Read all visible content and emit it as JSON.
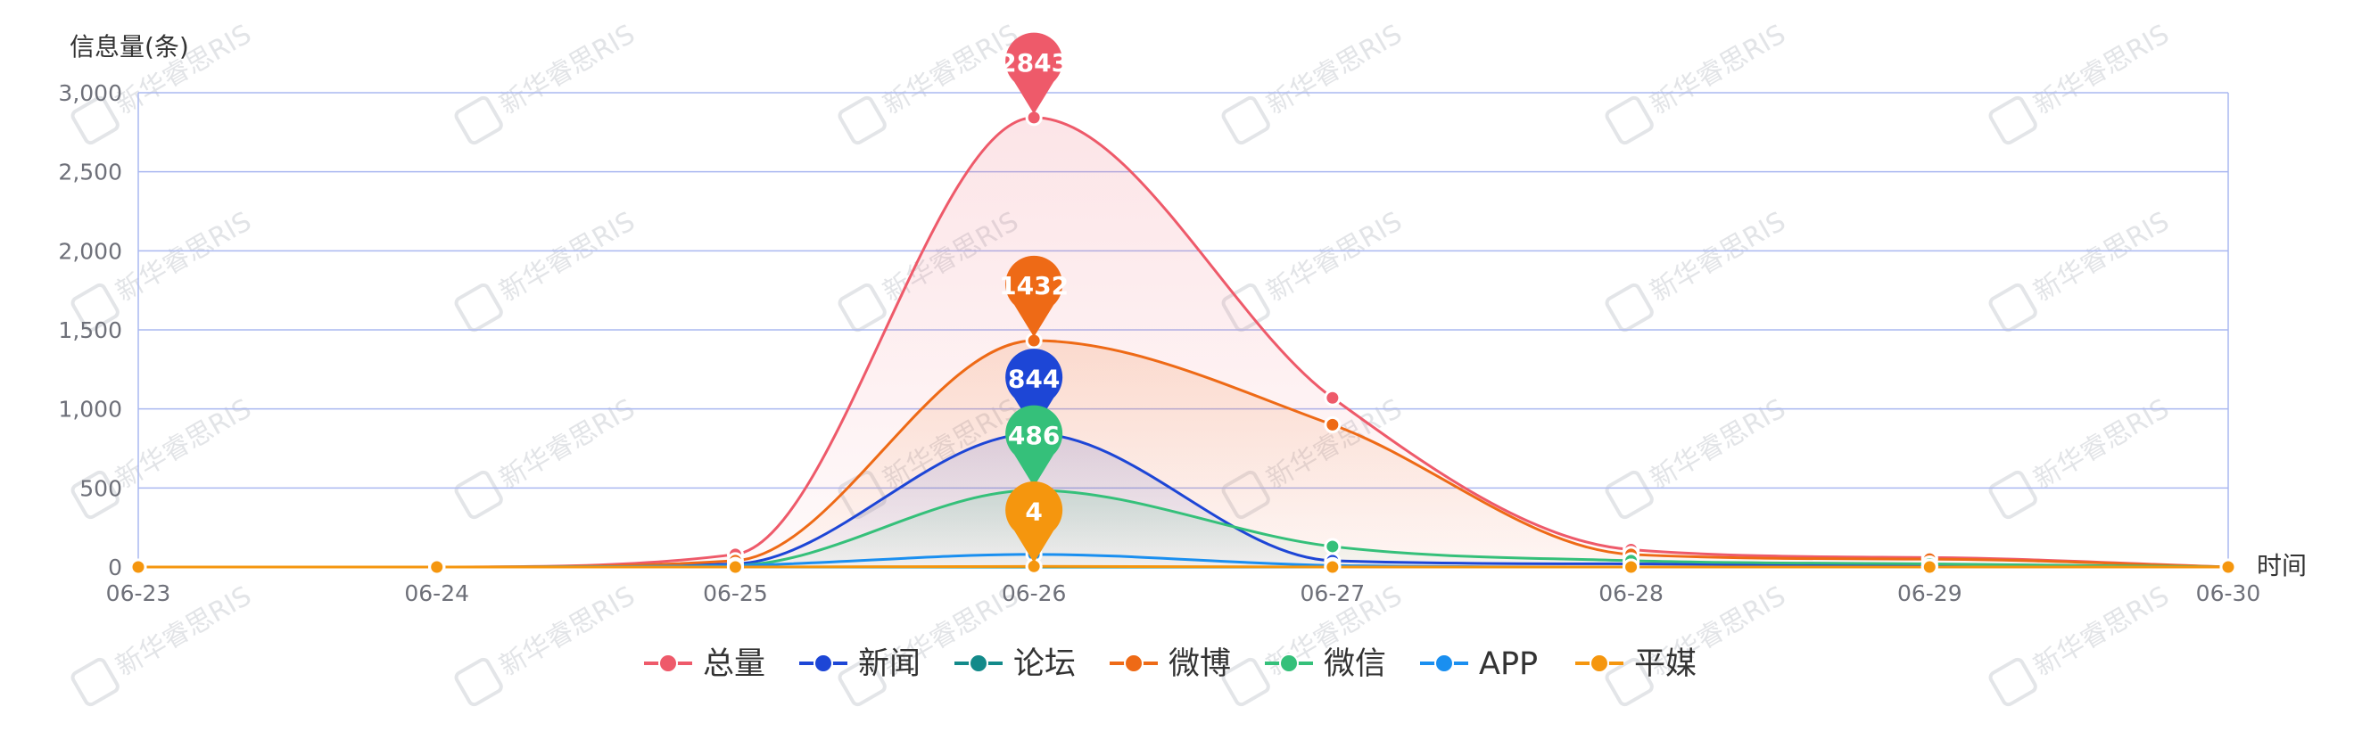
{
  "chart_data": {
    "type": "line",
    "x": [
      "06-23",
      "06-24",
      "06-25",
      "06-26",
      "06-27",
      "06-28",
      "06-29",
      "06-30"
    ],
    "ylabel": "信息量(条)",
    "xlabel": "时间",
    "ylim": [
      0,
      3000
    ],
    "yticks": [
      0,
      500,
      1000,
      1500,
      2000,
      2500,
      3000
    ],
    "ytick_labels": [
      "0",
      "500",
      "1,000",
      "1,500",
      "2,000",
      "2,500",
      "3,000"
    ],
    "grid": true,
    "legend": "bottom-center",
    "series": [
      {
        "name": "总量",
        "color": "#ee5a6a",
        "values": [
          0,
          0,
          80,
          2843,
          1070,
          110,
          60,
          0
        ],
        "area": true,
        "max_label": "2843"
      },
      {
        "name": "新闻",
        "color": "#1d46d6",
        "values": [
          0,
          0,
          20,
          844,
          40,
          20,
          10,
          0
        ],
        "area": true,
        "max_label": "844"
      },
      {
        "name": "论坛",
        "color": "#138a8a",
        "values": [
          0,
          0,
          0,
          0,
          0,
          0,
          0,
          0
        ],
        "area": false,
        "max_label": ""
      },
      {
        "name": "微博",
        "color": "#ee6a16",
        "values": [
          0,
          0,
          40,
          1432,
          900,
          80,
          50,
          0
        ],
        "area": true,
        "max_label": "1432"
      },
      {
        "name": "微信",
        "color": "#35c07a",
        "values": [
          0,
          0,
          10,
          486,
          130,
          40,
          20,
          0
        ],
        "area": true,
        "max_label": "486"
      },
      {
        "name": "APP",
        "color": "#1a8ff0",
        "values": [
          0,
          0,
          10,
          80,
          10,
          0,
          0,
          0
        ],
        "area": false,
        "max_label": ""
      },
      {
        "name": "平媒",
        "color": "#f5960e",
        "values": [
          0,
          0,
          0,
          4,
          0,
          0,
          0,
          0
        ],
        "area": false,
        "max_label": "4"
      }
    ]
  },
  "watermark": {
    "text": "新华睿思RIS"
  }
}
